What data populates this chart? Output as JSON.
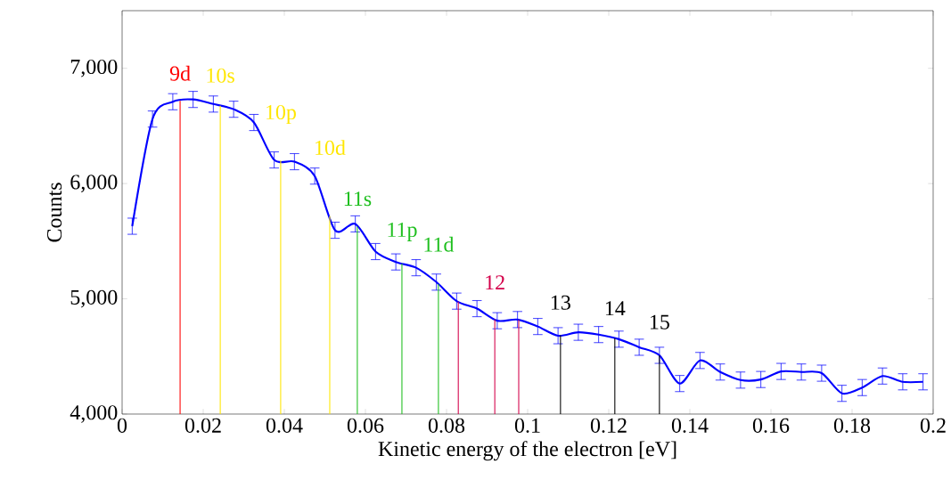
{
  "chart_data": {
    "type": "line",
    "xlabel": "Kinetic energy of the electron [eV]",
    "ylabel": "Counts",
    "x": [
      0.0025,
      0.0075,
      0.0125,
      0.0175,
      0.0225,
      0.0275,
      0.0325,
      0.0375,
      0.0425,
      0.0475,
      0.0525,
      0.0575,
      0.0625,
      0.0675,
      0.0725,
      0.0775,
      0.0825,
      0.0875,
      0.0925,
      0.0975,
      0.1025,
      0.1075,
      0.1125,
      0.1175,
      0.1225,
      0.1275,
      0.1325,
      0.1375,
      0.1425,
      0.1475,
      0.1525,
      0.1575,
      0.1625,
      0.1675,
      0.1725,
      0.1775,
      0.1825,
      0.1875,
      0.1925,
      0.1975
    ],
    "series": [
      {
        "color": "#0000ff",
        "values": [
          5630,
          6560,
          6710,
          6730,
          6690,
          6645,
          6530,
          6205,
          6190,
          6065,
          5595,
          5650,
          5410,
          5320,
          5270,
          5145,
          4980,
          4915,
          4810,
          4820,
          4760,
          4680,
          4710,
          4690,
          4650,
          4580,
          4510,
          4265,
          4465,
          4365,
          4295,
          4300,
          4370,
          4365,
          4355,
          4180,
          4230,
          4330,
          4280,
          4280
        ],
        "errors": [
          70,
          70,
          70,
          70,
          70,
          70,
          70,
          70,
          70,
          70,
          70,
          70,
          70,
          70,
          70,
          70,
          70,
          70,
          70,
          70,
          70,
          70,
          70,
          70,
          70,
          70,
          70,
          70,
          70,
          70,
          70,
          70,
          70,
          70,
          70,
          70,
          70,
          70,
          70,
          70
        ]
      }
    ],
    "marker": "none",
    "line_style": "solid",
    "grid": false,
    "annotations": [
      "12",
      "13",
      "14",
      "15"
    ],
    "xlim": [
      0,
      0.2
    ],
    "ylim": [
      4000,
      7500
    ],
    "xticks": [
      0,
      0.02,
      0.04,
      0.06,
      0.08,
      0.1,
      0.12,
      0.14,
      0.16,
      0.18,
      0.2
    ],
    "yticks": [
      {
        "value": 4000,
        "label": "4,000"
      },
      {
        "value": 5000,
        "label": "5,000"
      },
      {
        "value": 6000,
        "label": "6,000"
      },
      {
        "value": 7000,
        "label": "7,000"
      }
    ],
    "ref_lines": [
      {
        "axis": "x",
        "value": 0.0143,
        "label": "9d",
        "color": "#ff0000"
      },
      {
        "axis": "x",
        "value": 0.0242,
        "label": "10s",
        "color": "#ffe600"
      },
      {
        "axis": "x",
        "value": 0.0391,
        "label": "10p",
        "color": "#ffe600"
      },
      {
        "axis": "x",
        "value": 0.0512,
        "label": "10d",
        "color": "#ffe600"
      },
      {
        "axis": "x",
        "value": 0.058,
        "label": "11s",
        "color": "#1fbf1f"
      },
      {
        "axis": "x",
        "value": 0.069,
        "label": "11p",
        "color": "#1fbf1f"
      },
      {
        "axis": "x",
        "value": 0.078,
        "label": "11d",
        "color": "#1fbf1f"
      },
      {
        "axis": "x",
        "value": 0.0829,
        "color": "#d4004a"
      },
      {
        "axis": "x",
        "value": 0.0919,
        "color": "#d4004a"
      },
      {
        "axis": "x",
        "value": 0.0978,
        "color": "#d4004a"
      },
      {
        "axis": "x",
        "value": 0.1081,
        "color": "#000000"
      },
      {
        "axis": "x",
        "value": 0.1215,
        "color": "#000000"
      },
      {
        "axis": "x",
        "value": 0.1325,
        "color": "#000000"
      }
    ]
  }
}
